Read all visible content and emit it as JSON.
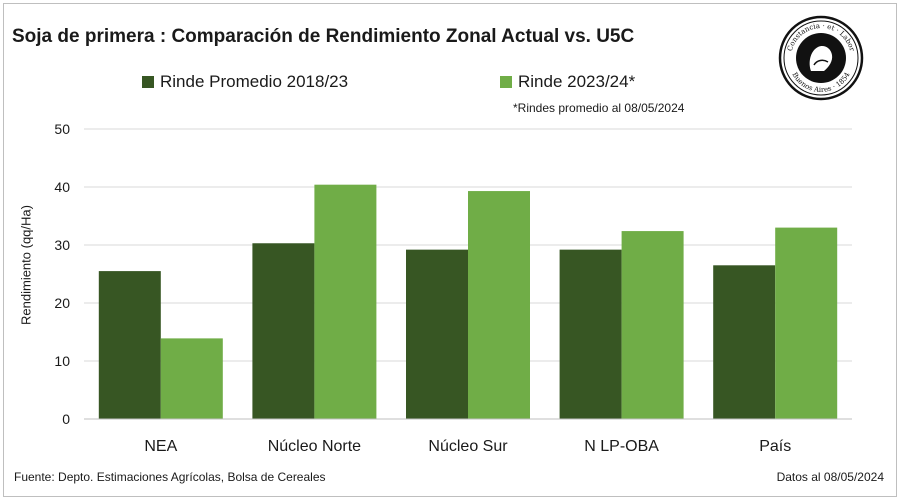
{
  "chart_data": {
    "type": "bar",
    "title": "Soja de primera : Comparación  de Rendimiento Zonal Actual vs. U5C",
    "categories": [
      "NEA",
      "Núcleo Norte",
      "Núcleo Sur",
      "N LP-OBA",
      "País"
    ],
    "series": [
      {
        "name": "Rinde Promedio 2018/23",
        "color": "#375623",
        "values": [
          25.5,
          30.3,
          29.2,
          29.2,
          26.5
        ]
      },
      {
        "name": "Rinde 2023/24*",
        "color": "#70ad47",
        "values": [
          13.9,
          40.4,
          39.3,
          32.4,
          33.0
        ]
      }
    ],
    "ylabel": "Rendimiento (qq/Ha)",
    "xlabel": "",
    "ylim": [
      0,
      50
    ],
    "yticks": [
      0,
      10,
      20,
      30,
      40,
      50
    ],
    "grid": true,
    "legend_position": "top",
    "note": "*Rindes promedio al 08/05/2024",
    "source": "Fuente: Depto. Estimaciones Agrícolas, Bolsa de Cereales",
    "date": "Datos al 08/05/2024"
  },
  "logo": {
    "top_text": "Constancia · et · Labor",
    "bottom_text": "Buenos Aires · 1854"
  }
}
